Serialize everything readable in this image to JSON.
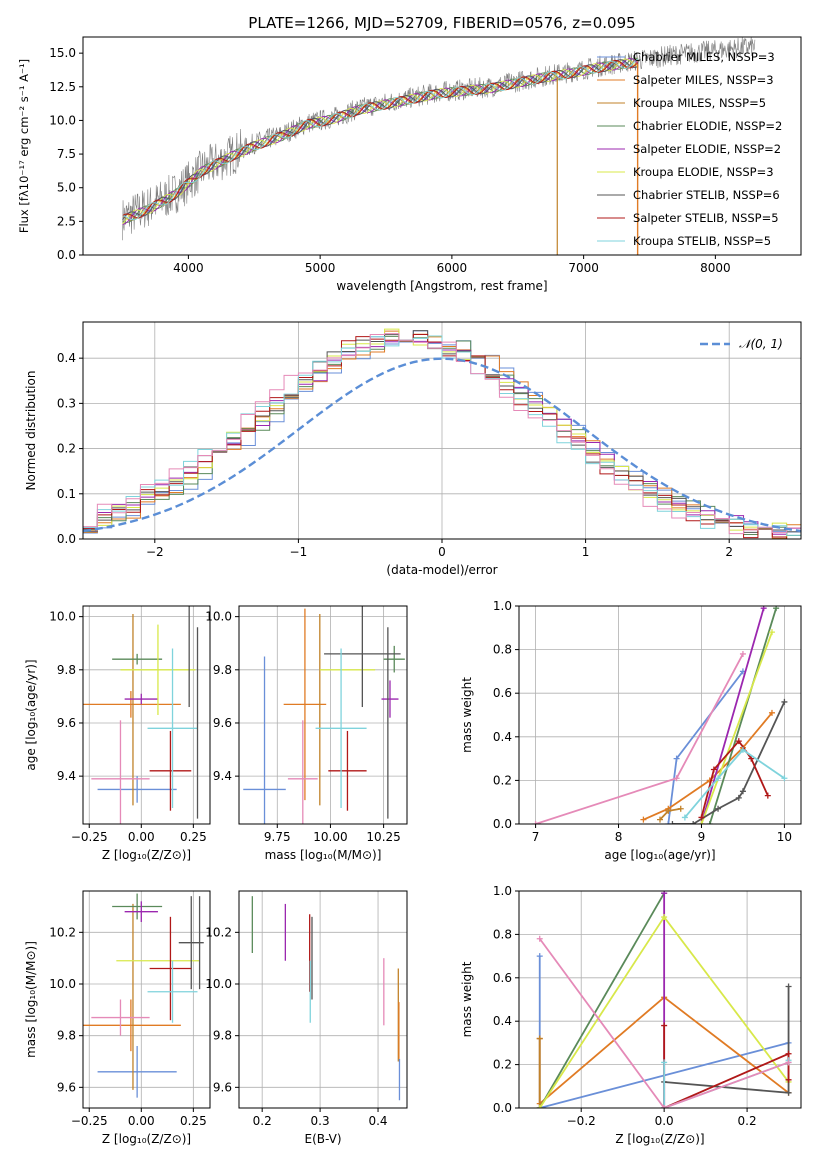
{
  "figure_title": "PLATE=1266, MJD=52709, FIBERID=0576, z=0.095",
  "colors": {
    "Chabrier MILES": "#6a8fd8",
    "Salpeter MILES": "#e07b24",
    "Kroupa MILES": "#c1822a",
    "Chabrier ELODIE": "#5a8a5a",
    "Salpeter ELODIE": "#9b27af",
    "Kroupa ELODIE": "#d8e84a",
    "Chabrier STELIB": "#555555",
    "Salpeter STELIB": "#b01818",
    "Kroupa STELIB": "#7fd3dc",
    "pink": "#e58ab8",
    "gaussian": "#5b8ed6",
    "data": "#7f7f7f"
  },
  "chart_data": [
    {
      "id": "spectrum",
      "type": "line",
      "title": "PLATE=1266, MJD=52709, FIBERID=0576, z=0.095",
      "xlabel": "wavelength [Angstrom, rest frame]",
      "ylabel": "Flux [fλ10⁻¹⁷ erg cm⁻² s⁻¹ A⁻¹]",
      "xlim": [
        3200,
        8650
      ],
      "ylim": [
        0,
        16.2
      ],
      "xticks": [
        4000,
        5000,
        6000,
        7000,
        8000
      ],
      "yticks": [
        0.0,
        2.5,
        5.0,
        7.5,
        10.0,
        12.5,
        15.0
      ],
      "grid": false,
      "legend_position": "right",
      "legend": [
        "Chabrier MILES, N_SSP=3",
        "Salpeter MILES, N_SSP=3",
        "Kroupa MILES, N_SSP=5",
        "Chabrier ELODIE, N_SSP=2",
        "Salpeter ELODIE, N_SSP=2",
        "Kroupa ELODIE, N_SSP=3",
        "Chabrier STELIB, N_SSP=6",
        "Salpeter STELIB, N_SSP=5",
        "Kroupa STELIB, N_SSP=5"
      ],
      "data_curve": {
        "x": [
          3500,
          3700,
          3900,
          4100,
          4300,
          4500,
          4700,
          4900,
          5100,
          5300,
          5500,
          5700,
          5900,
          6100,
          6300,
          6500,
          6700,
          6900,
          7100,
          7300,
          7500,
          7700,
          7900,
          8100,
          8300
        ],
        "y": [
          2.7,
          3.6,
          4.6,
          6.3,
          7.3,
          8.3,
          8.9,
          9.8,
          10.2,
          10.9,
          11.3,
          11.7,
          12.1,
          12.3,
          12.5,
          12.9,
          13.3,
          13.6,
          14.0,
          14.3,
          14.6,
          14.9,
          15.1,
          15.3,
          15.5
        ]
      },
      "model_curve": {
        "x": [
          3500,
          3700,
          3900,
          4100,
          4300,
          4500,
          4700,
          4900,
          5100,
          5300,
          5500,
          5700,
          5900,
          6100,
          6300,
          6500,
          6700,
          6900,
          7100,
          7300,
          7400
        ],
        "y": [
          2.6,
          3.4,
          4.5,
          6.2,
          7.2,
          8.1,
          8.8,
          9.7,
          10.1,
          10.8,
          11.2,
          11.6,
          12.0,
          12.2,
          12.4,
          12.8,
          13.2,
          13.5,
          13.9,
          14.2,
          14.3
        ]
      }
    },
    {
      "id": "residuals",
      "type": "line",
      "xlabel": "(data-model)/error",
      "ylabel": "Normed distribution",
      "xlim": [
        -2.5,
        2.5
      ],
      "ylim": [
        0,
        0.48
      ],
      "xticks": [
        -2,
        -1,
        0,
        1,
        2
      ],
      "yticks": [
        0.0,
        0.1,
        0.2,
        0.3,
        0.4
      ],
      "grid": true,
      "legend_position": "top-right",
      "legend": [
        "𝒩(0, 1)"
      ],
      "gaussian": {
        "mu": 0,
        "sigma": 1
      }
    },
    {
      "id": "age_vs_Z",
      "type": "scatter",
      "xlabel": "Z [log₁₀(Z/Z⊙)]",
      "ylabel": "age  [log₁₀(age/yr)]",
      "xlim": [
        -0.28,
        0.33
      ],
      "ylim": [
        9.22,
        10.04
      ],
      "xticks": [
        -0.25,
        0.0,
        0.25
      ],
      "xticklabels": [
        "−0.25",
        "0.00",
        "0.25"
      ],
      "yticks": [
        9.4,
        9.6,
        9.8,
        10.0
      ],
      "grid": true,
      "points": [
        {
          "model": "Chabrier MILES",
          "x": -0.02,
          "xerr": 0.19,
          "y": 9.35,
          "yerr": 0.05
        },
        {
          "model": "Salpeter MILES",
          "x": -0.05,
          "xerr": 0.24,
          "y": 9.67,
          "yerr": 0.05
        },
        {
          "model": "Kroupa MILES",
          "x": -0.04,
          "xerr": 0.0,
          "y": 9.65,
          "yerr": 0.36
        },
        {
          "model": "Chabrier ELODIE",
          "x": -0.02,
          "xerr": 0.12,
          "y": 9.84,
          "yerr": 0.02
        },
        {
          "model": "Salpeter ELODIE",
          "x": 0.0,
          "xerr": 0.08,
          "y": 9.69,
          "yerr": 0.02
        },
        {
          "model": "Kroupa ELODIE",
          "x": 0.08,
          "xerr": 0.18,
          "y": 9.8,
          "yerr": 0.17
        },
        {
          "model": "Chabrier STELIB",
          "x": 0.23,
          "xerr": 0.0,
          "y": 9.86,
          "yerr": 0.2
        },
        {
          "model": "Salpeter STELIB",
          "x": 0.14,
          "xerr": 0.1,
          "y": 9.42,
          "yerr": 0.15
        },
        {
          "model": "Kroupa STELIB",
          "x": 0.15,
          "xerr": 0.12,
          "y": 9.58,
          "yerr": 0.3
        },
        {
          "model": "pink",
          "x": -0.1,
          "xerr": 0.14,
          "y": 9.39,
          "yerr": 0.22
        },
        {
          "model": "Chabrier STELIB",
          "x": 0.27,
          "xerr": 0.0,
          "y": 9.6,
          "yerr": 0.36
        }
      ]
    },
    {
      "id": "age_vs_mass",
      "type": "scatter",
      "xlabel": "mass [log₁₀(M/M⊙)]",
      "ylabel": "",
      "xlim": [
        9.57,
        10.36
      ],
      "ylim": [
        9.22,
        10.04
      ],
      "xticks": [
        9.75,
        10.0,
        10.25
      ],
      "xticklabels": [
        "9.75",
        "10.00",
        "10.25"
      ],
      "yticks": [
        9.4,
        9.6,
        9.8,
        10.0
      ],
      "grid": true,
      "points": [
        {
          "model": "Chabrier MILES",
          "x": 9.69,
          "xerr": 0.1,
          "y": 9.35,
          "yerr": 0.5
        },
        {
          "model": "Salpeter MILES",
          "x": 9.88,
          "xerr": 0.1,
          "y": 9.67,
          "yerr": 0.36
        },
        {
          "model": "Kroupa MILES",
          "x": 9.95,
          "xerr": 0.0,
          "y": 9.65,
          "yerr": 0.36
        },
        {
          "model": "Chabrier ELODIE",
          "x": 10.3,
          "xerr": 0.05,
          "y": 9.84,
          "yerr": 0.05
        },
        {
          "model": "Salpeter ELODIE",
          "x": 10.28,
          "xerr": 0.04,
          "y": 9.69,
          "yerr": 0.07
        },
        {
          "model": "Kroupa ELODIE",
          "x": 10.08,
          "xerr": 0.13,
          "y": 9.8,
          "yerr": 0.0
        },
        {
          "model": "Chabrier STELIB",
          "x": 10.15,
          "xerr": 0.18,
          "y": 9.86,
          "yerr": 0.2
        },
        {
          "model": "Salpeter STELIB",
          "x": 10.08,
          "xerr": 0.09,
          "y": 9.42,
          "yerr": 0.15
        },
        {
          "model": "Kroupa STELIB",
          "x": 10.05,
          "xerr": 0.12,
          "y": 9.58,
          "yerr": 0.3
        },
        {
          "model": "pink",
          "x": 9.87,
          "xerr": 0.07,
          "y": 9.39,
          "yerr": 0.22
        },
        {
          "model": "Chabrier STELIB",
          "x": 10.27,
          "xerr": 0.0,
          "y": 9.6,
          "yerr": 0.36
        }
      ]
    },
    {
      "id": "weight_vs_age",
      "type": "line",
      "xlabel": "age  [log₁₀(age/yr)]",
      "ylabel": "mass weight",
      "xlim": [
        6.8,
        10.2
      ],
      "ylim": [
        0,
        1
      ],
      "xticks": [
        7,
        8,
        9,
        10
      ],
      "yticks": [
        0.0,
        0.2,
        0.4,
        0.6,
        0.8,
        1.0
      ],
      "grid": true,
      "series": [
        {
          "model": "Chabrier MILES",
          "x": [
            8.6,
            8.7,
            9.5
          ],
          "y": [
            0.0,
            0.3,
            0.7
          ]
        },
        {
          "model": "Salpeter MILES",
          "x": [
            8.3,
            8.6,
            9.1,
            9.5,
            9.85
          ],
          "y": [
            0.02,
            0.07,
            0.2,
            0.35,
            0.51
          ]
        },
        {
          "model": "Kroupa MILES",
          "x": [
            8.5,
            8.6,
            8.75
          ],
          "y": [
            0.02,
            0.06,
            0.07
          ]
        },
        {
          "model": "Chabrier ELODIE",
          "x": [
            9.1,
            9.9
          ],
          "y": [
            0.0,
            0.99
          ]
        },
        {
          "model": "Salpeter ELODIE",
          "x": [
            9.0,
            9.75
          ],
          "y": [
            0.0,
            0.99
          ]
        },
        {
          "model": "Kroupa ELODIE",
          "x": [
            9.0,
            9.85
          ],
          "y": [
            0.0,
            0.88
          ]
        },
        {
          "model": "Chabrier STELIB",
          "x": [
            8.65,
            8.9,
            9.2,
            9.45,
            9.5,
            10.0
          ],
          "y": [
            0.0,
            0.0,
            0.07,
            0.12,
            0.15,
            0.56
          ]
        },
        {
          "model": "Salpeter STELIB",
          "x": [
            9.0,
            9.15,
            9.45,
            9.6,
            9.8
          ],
          "y": [
            0.03,
            0.25,
            0.38,
            0.3,
            0.13
          ]
        },
        {
          "model": "Kroupa STELIB",
          "x": [
            8.8,
            9.2,
            9.5,
            10.0
          ],
          "y": [
            0.03,
            0.21,
            0.34,
            0.21
          ]
        },
        {
          "model": "pink",
          "x": [
            7.0,
            8.7,
            9.5
          ],
          "y": [
            0.0,
            0.21,
            0.78
          ]
        }
      ]
    },
    {
      "id": "mass_vs_Z",
      "type": "scatter",
      "xlabel": "Z [log₁₀(Z/Z⊙)]",
      "ylabel": "mass [log₁₀(M/M⊙)]",
      "xlim": [
        -0.28,
        0.33
      ],
      "ylim": [
        9.52,
        10.36
      ],
      "xticks": [
        -0.25,
        0.0,
        0.25
      ],
      "xticklabels": [
        "−0.25",
        "0.00",
        "0.25"
      ],
      "yticks": [
        9.6,
        9.8,
        10.0,
        10.2
      ],
      "grid": true,
      "points": [
        {
          "model": "Chabrier MILES",
          "x": -0.02,
          "xerr": 0.19,
          "y": 9.66,
          "yerr": 0.1
        },
        {
          "model": "Salpeter MILES",
          "x": -0.05,
          "xerr": 0.24,
          "y": 9.84,
          "yerr": 0.1
        },
        {
          "model": "Kroupa MILES",
          "x": -0.04,
          "xerr": 0.0,
          "y": 9.95,
          "yerr": 0.36
        },
        {
          "model": "Chabrier ELODIE",
          "x": -0.02,
          "xerr": 0.12,
          "y": 10.3,
          "yerr": 0.05
        },
        {
          "model": "Salpeter ELODIE",
          "x": 0.0,
          "xerr": 0.08,
          "y": 10.28,
          "yerr": 0.04
        },
        {
          "model": "Kroupa ELODIE",
          "x": 0.08,
          "xerr": 0.2,
          "y": 10.09,
          "yerr": 0.0
        },
        {
          "model": "Chabrier STELIB",
          "x": 0.24,
          "xerr": 0.06,
          "y": 10.16,
          "yerr": 0.18
        },
        {
          "model": "Salpeter STELIB",
          "x": 0.14,
          "xerr": 0.1,
          "y": 10.06,
          "yerr": 0.2
        },
        {
          "model": "Kroupa STELIB",
          "x": 0.15,
          "xerr": 0.12,
          "y": 9.97,
          "yerr": 0.12
        },
        {
          "model": "pink",
          "x": -0.1,
          "xerr": 0.14,
          "y": 9.87,
          "yerr": 0.07
        },
        {
          "model": "Chabrier STELIB",
          "x": 0.28,
          "xerr": 0.0,
          "y": 10.16,
          "yerr": 0.18
        }
      ]
    },
    {
      "id": "mass_vs_EBV",
      "type": "scatter",
      "xlabel": "E(B-V)",
      "ylabel": "",
      "xlim": [
        0.16,
        0.45
      ],
      "ylim": [
        9.52,
        10.36
      ],
      "xticks": [
        0.2,
        0.3,
        0.4
      ],
      "yticks": [
        9.6,
        9.8,
        10.0,
        10.2
      ],
      "grid": true,
      "points": [
        {
          "model": "Chabrier ELODIE",
          "x": 0.183,
          "y": 10.23,
          "yerr": 0.11
        },
        {
          "model": "Salpeter ELODIE",
          "x": 0.24,
          "y": 10.2,
          "yerr": 0.11
        },
        {
          "model": "Salpeter STELIB",
          "x": 0.282,
          "y": 10.12,
          "yerr": 0.15
        },
        {
          "model": "Chabrier STELIB",
          "x": 0.286,
          "y": 10.1,
          "yerr": 0.16
        },
        {
          "model": "Kroupa STELIB",
          "x": 0.283,
          "y": 9.97,
          "yerr": 0.12
        },
        {
          "model": "pink",
          "x": 0.41,
          "y": 9.97,
          "yerr": 0.13
        },
        {
          "model": "Kroupa MILES",
          "x": 0.435,
          "y": 9.88,
          "yerr": 0.18
        },
        {
          "model": "Salpeter MILES",
          "x": 0.436,
          "y": 9.82,
          "yerr": 0.11
        },
        {
          "model": "Chabrier MILES",
          "x": 0.437,
          "y": 9.63,
          "yerr": 0.08
        }
      ]
    },
    {
      "id": "weight_vs_Z",
      "type": "line",
      "xlabel": "Z [log₁₀(Z/Z⊙)]",
      "ylabel": "mass weight",
      "xlim": [
        -0.35,
        0.33
      ],
      "ylim": [
        0,
        1
      ],
      "xticks": [
        -0.2,
        0.0,
        0.2
      ],
      "xticklabels": [
        "−0.2",
        "0.0",
        "0.2"
      ],
      "yticks": [
        0.0,
        0.2,
        0.4,
        0.6,
        0.8,
        1.0
      ],
      "grid": true,
      "series": [
        {
          "model": "Chabrier MILES",
          "x": [
            -0.3,
            -0.3,
            0.3
          ],
          "y": [
            0.7,
            0.0,
            0.3
          ]
        },
        {
          "model": "Salpeter MILES",
          "x": [
            -0.3,
            -0.3,
            0.0,
            0.3
          ],
          "y": [
            0.32,
            0.02,
            0.51,
            0.07
          ]
        },
        {
          "model": "Kroupa MILES",
          "x": [
            -0.3,
            -0.3
          ],
          "y": [
            0.32,
            0.0
          ]
        },
        {
          "model": "Chabrier ELODIE",
          "x": [
            -0.3,
            0.0
          ],
          "y": [
            0.0,
            0.99
          ]
        },
        {
          "model": "Salpeter ELODIE",
          "x": [
            0.0,
            0.0
          ],
          "y": [
            0.0,
            0.99
          ]
        },
        {
          "model": "Kroupa ELODIE",
          "x": [
            -0.3,
            0.0,
            0.3
          ],
          "y": [
            0.0,
            0.88,
            0.12
          ]
        },
        {
          "model": "Chabrier STELIB",
          "x": [
            0.0,
            0.3,
            0.3
          ],
          "y": [
            0.12,
            0.07,
            0.56
          ]
        },
        {
          "model": "Salpeter STELIB",
          "x": [
            0.0,
            0.0,
            0.3,
            0.3
          ],
          "y": [
            0.38,
            0.0,
            0.25,
            0.13
          ]
        },
        {
          "model": "Kroupa STELIB",
          "x": [
            0.0,
            0.0,
            0.3,
            0.3
          ],
          "y": [
            0.21,
            0.0,
            0.21,
            0.22
          ]
        },
        {
          "model": "pink",
          "x": [
            -0.3,
            0.0,
            0.3
          ],
          "y": [
            0.78,
            0.0,
            0.21
          ]
        }
      ]
    }
  ]
}
